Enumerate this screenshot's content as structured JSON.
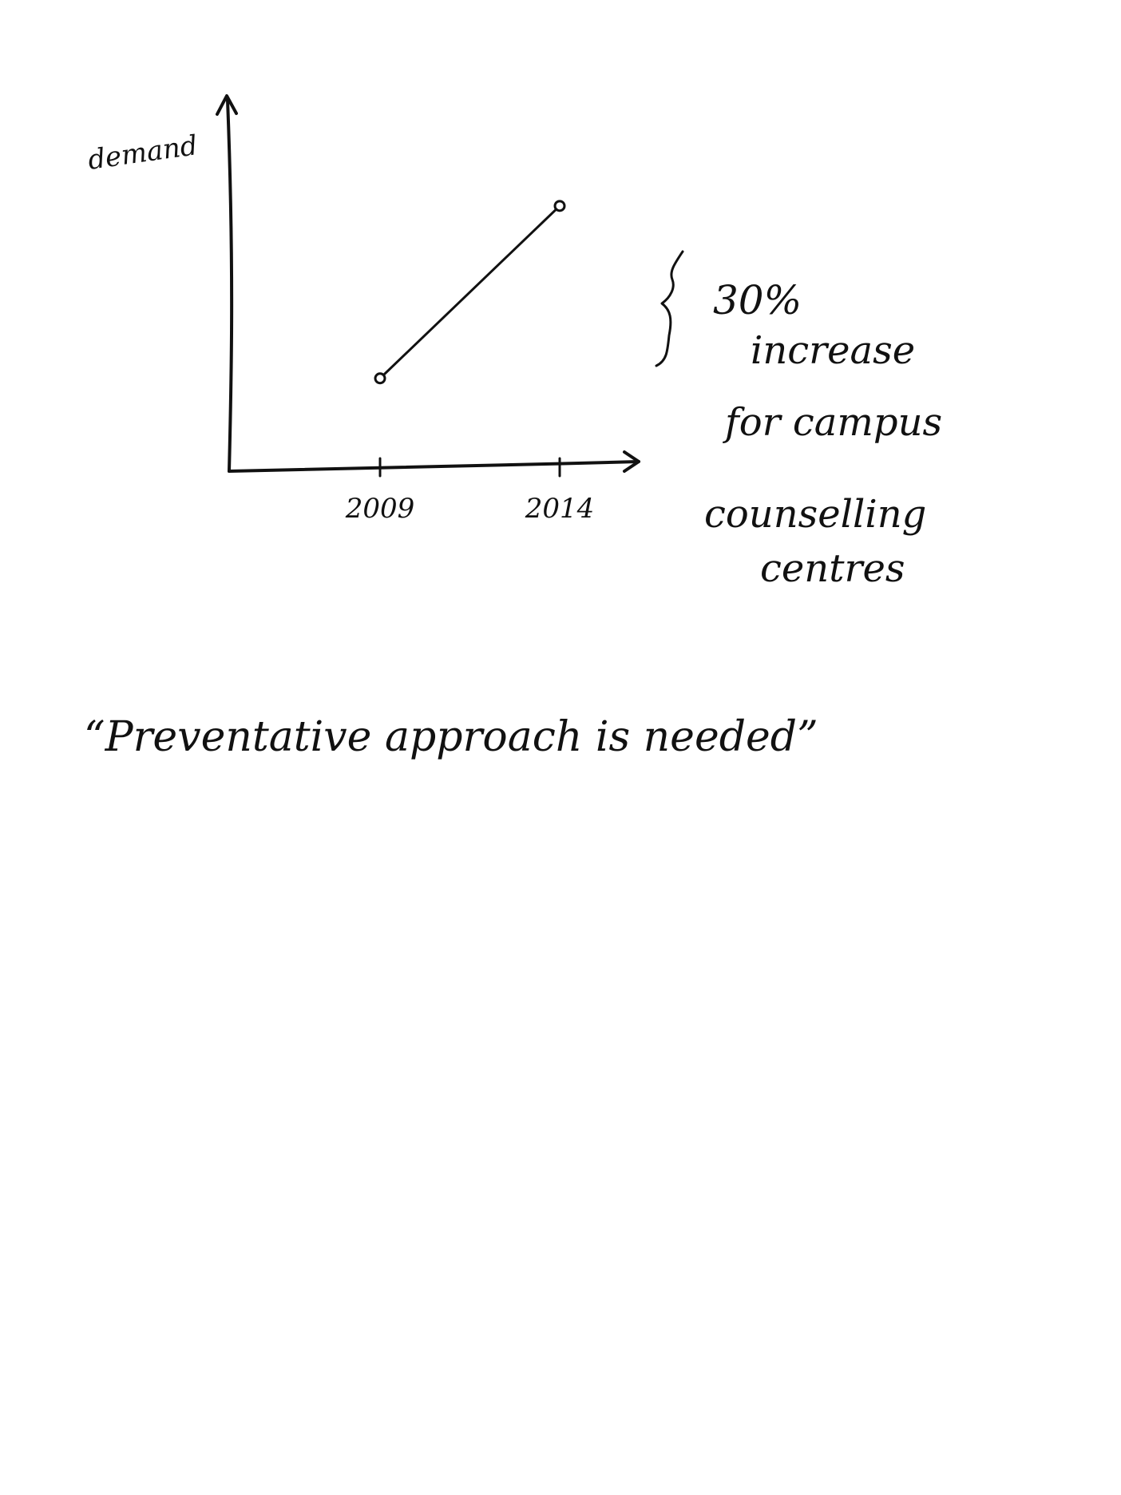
{
  "chart_data": {
    "type": "line",
    "ylabel": "demand",
    "xlabel": "",
    "x_ticks": [
      "2009",
      "2014"
    ],
    "x": [
      2009,
      2014
    ],
    "series": [
      {
        "values": [
          0.35,
          1.0
        ]
      }
    ],
    "xlim": [
      2004.8,
      2016.2
    ],
    "ylim": [
      0,
      1.4
    ],
    "grid": false,
    "y_values_relative": true
  },
  "annotation": {
    "lines": [
      "30%",
      "increase",
      "for campus",
      "counselling",
      "centres"
    ]
  },
  "quote": "“Preventative approach is needed”"
}
